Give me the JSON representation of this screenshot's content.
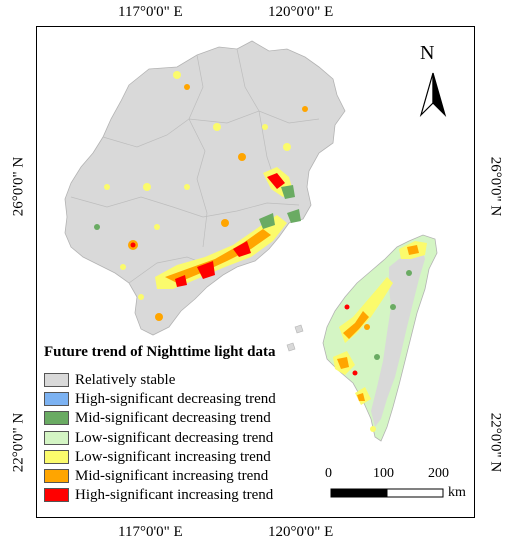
{
  "coordinates": {
    "top_left": "117°0'0\" E",
    "top_right": "120°0'0\" E",
    "bottom_left": "117°0'0\" E",
    "bottom_right": "120°0'0\" E",
    "left_upper": "26°0'0\" N",
    "left_lower": "22°0'0\" N",
    "right_upper": "26°0'0\" N",
    "right_lower": "22°0'0\" N"
  },
  "north_arrow": {
    "label": "N",
    "icon": "north-arrow-icon"
  },
  "legend": {
    "title": "Future trend of Nighttime light data",
    "items": [
      {
        "label": "Relatively stable",
        "color": "#d9d9d9"
      },
      {
        "label": "High-significant decreasing trend",
        "color": "#7cb2f2"
      },
      {
        "label": "Mid-significant decreasing trend",
        "color": "#6aab63"
      },
      {
        "label": "Low-significant decreasing trend",
        "color": "#d4f5c4"
      },
      {
        "label": "Low-significant increasing trend",
        "color": "#fbfb6c"
      },
      {
        "label": "Mid-significant increasing trend",
        "color": "#ffa500"
      },
      {
        "label": "High-significant increasing trend",
        "color": "#ff0000"
      }
    ]
  },
  "scale_bar": {
    "labels": [
      "0",
      "100",
      "200"
    ],
    "unit": "km"
  }
}
